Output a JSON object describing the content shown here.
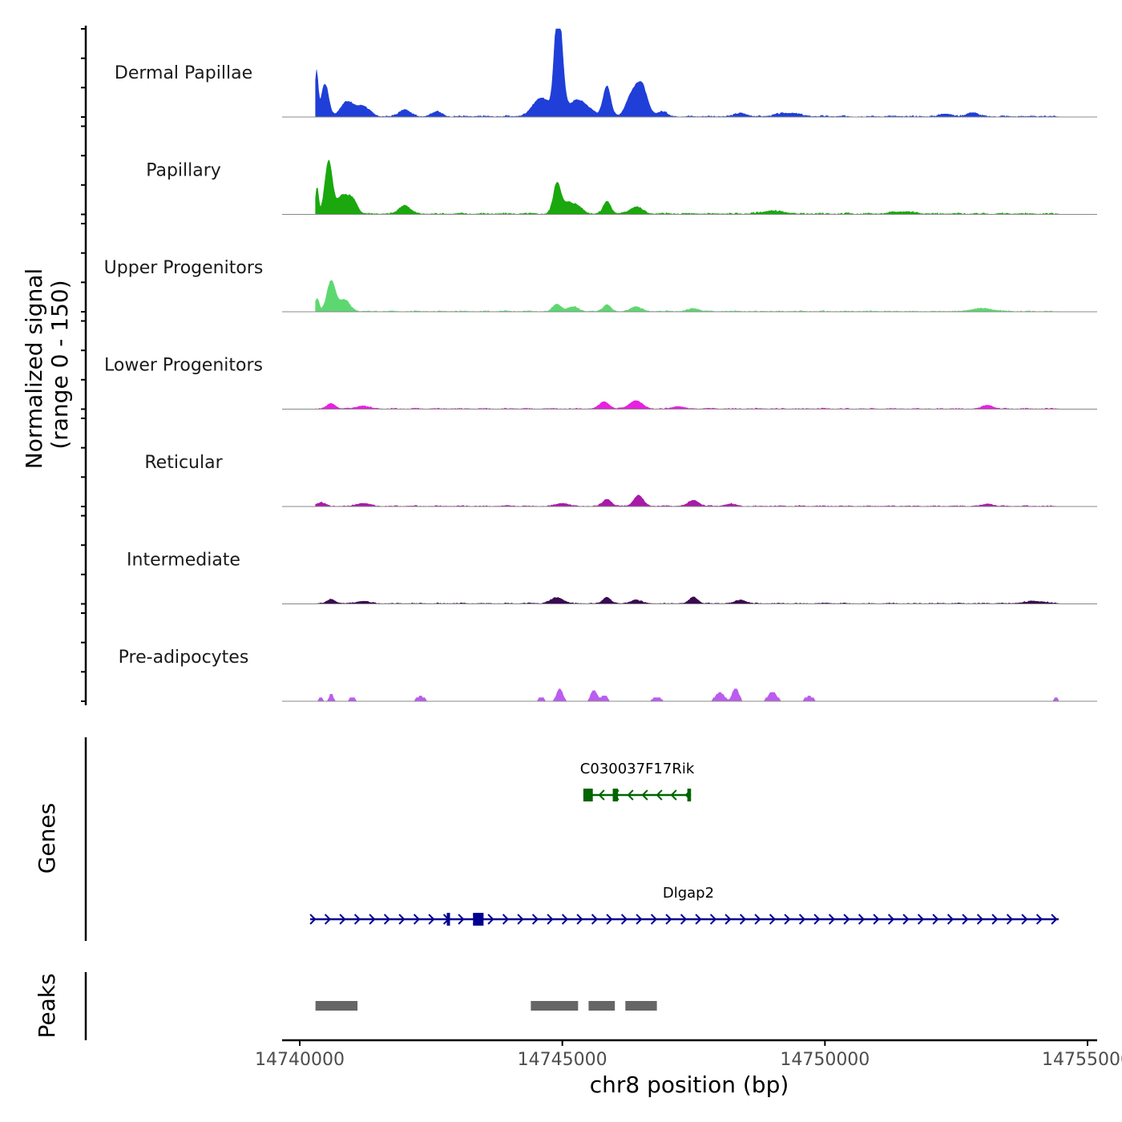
{
  "chart_data": {
    "type": "area",
    "title": "",
    "ylabel_line1": "Normalized signal",
    "ylabel_line2": "(range 0 - 150)",
    "ylim": [
      0,
      150
    ],
    "xlabel": "chr8 position (bp)",
    "xlim": [
      14740000,
      14755100
    ],
    "x_ticks": [
      14740000,
      14745000,
      14750000,
      14755000
    ],
    "x_tick_labels": [
      "14740000",
      "14745000",
      "14750000",
      "14755000"
    ],
    "signal_start": 14740300,
    "signal_end": 14754450,
    "tracks": [
      {
        "name": "Dermal Papillae",
        "color": "#1f3fd8",
        "peaks": [
          [
            14740320,
            75,
            30
          ],
          [
            14740480,
            55,
            70
          ],
          [
            14740900,
            25,
            120
          ],
          [
            14741200,
            18,
            120
          ],
          [
            14742000,
            12,
            100
          ],
          [
            14742600,
            8,
            100
          ],
          [
            14744600,
            32,
            160
          ],
          [
            14744900,
            145,
            60
          ],
          [
            14744980,
            75,
            60
          ],
          [
            14745300,
            28,
            200
          ],
          [
            14745850,
            52,
            70
          ],
          [
            14746500,
            55,
            110
          ],
          [
            14746300,
            30,
            100
          ],
          [
            14746900,
            8,
            100
          ],
          [
            14748400,
            6,
            100
          ],
          [
            14749300,
            6,
            200
          ],
          [
            14752300,
            5,
            100
          ],
          [
            14752800,
            7,
            100
          ]
        ],
        "noise": 3
      },
      {
        "name": "Papillary",
        "color": "#1aa80e",
        "peaks": [
          [
            14740330,
            45,
            30
          ],
          [
            14740550,
            90,
            70
          ],
          [
            14740800,
            30,
            100
          ],
          [
            14741000,
            25,
            90
          ],
          [
            14742000,
            15,
            100
          ],
          [
            14744900,
            52,
            70
          ],
          [
            14745100,
            18,
            100
          ],
          [
            14745300,
            12,
            100
          ],
          [
            14745850,
            22,
            70
          ],
          [
            14746400,
            12,
            120
          ],
          [
            14749000,
            5,
            200
          ],
          [
            14751500,
            4,
            200
          ]
        ],
        "noise": 3
      },
      {
        "name": "Upper Progenitors",
        "color": "#5dd870",
        "peaks": [
          [
            14740330,
            22,
            40
          ],
          [
            14740600,
            52,
            80
          ],
          [
            14740850,
            20,
            100
          ],
          [
            14744900,
            12,
            80
          ],
          [
            14745200,
            8,
            100
          ],
          [
            14745850,
            12,
            70
          ],
          [
            14746400,
            8,
            100
          ],
          [
            14747500,
            5,
            100
          ],
          [
            14753000,
            5,
            200
          ]
        ],
        "noise": 2
      },
      {
        "name": "Lower Progenitors",
        "color": "#e820e0",
        "peaks": [
          [
            14740600,
            9,
            80
          ],
          [
            14741200,
            5,
            120
          ],
          [
            14745800,
            12,
            90
          ],
          [
            14746400,
            14,
            120
          ],
          [
            14747200,
            4,
            100
          ],
          [
            14753100,
            6,
            100
          ]
        ],
        "noise": 2
      },
      {
        "name": "Reticular",
        "color": "#a81aa8",
        "peaks": [
          [
            14740400,
            6,
            80
          ],
          [
            14741200,
            5,
            120
          ],
          [
            14745000,
            5,
            120
          ],
          [
            14745850,
            12,
            80
          ],
          [
            14746450,
            18,
            90
          ],
          [
            14747500,
            10,
            100
          ],
          [
            14748200,
            4,
            100
          ],
          [
            14753100,
            4,
            100
          ]
        ],
        "noise": 2
      },
      {
        "name": "Intermediate",
        "color": "#3a0a52",
        "peaks": [
          [
            14740600,
            7,
            80
          ],
          [
            14741200,
            4,
            120
          ],
          [
            14744900,
            10,
            120
          ],
          [
            14745850,
            11,
            70
          ],
          [
            14746400,
            6,
            100
          ],
          [
            14747500,
            11,
            80
          ],
          [
            14748400,
            6,
            100
          ],
          [
            14754000,
            4,
            200
          ]
        ],
        "noise": 2
      },
      {
        "name": "Pre-adipocytes",
        "color": "#bb5cf0",
        "peaks": [
          [
            14740400,
            6,
            50
          ],
          [
            14740600,
            12,
            40
          ],
          [
            14741000,
            6,
            60
          ],
          [
            14742300,
            8,
            80
          ],
          [
            14744600,
            6,
            60
          ],
          [
            14744950,
            20,
            60
          ],
          [
            14745600,
            18,
            60
          ],
          [
            14745800,
            10,
            60
          ],
          [
            14746800,
            6,
            100
          ],
          [
            14748000,
            15,
            80
          ],
          [
            14748300,
            22,
            60
          ],
          [
            14749000,
            16,
            80
          ],
          [
            14749700,
            8,
            80
          ],
          [
            14754400,
            6,
            40
          ]
        ],
        "noise": 0
      }
    ],
    "genes_label": "Genes",
    "genes": [
      {
        "name": "C030037F17Rik",
        "color": "#006400",
        "start": 14745400,
        "end": 14747450,
        "strand": "-",
        "exons": [
          [
            14745400,
            14745580
          ],
          [
            14745960,
            14746060
          ],
          [
            14747380,
            14747450
          ]
        ]
      },
      {
        "name": "Dlgap2",
        "color": "#000090",
        "start": 14740200,
        "end": 14754450,
        "strand": "+",
        "exons": [
          [
            14742800,
            14742850
          ],
          [
            14743300,
            14743500
          ]
        ]
      }
    ],
    "peaks_label": "Peaks",
    "peak_regions": [
      [
        14740300,
        14741100
      ],
      [
        14744400,
        14745300
      ],
      [
        14745500,
        14746000
      ],
      [
        14746200,
        14746800
      ]
    ],
    "peak_color": "#666666"
  }
}
